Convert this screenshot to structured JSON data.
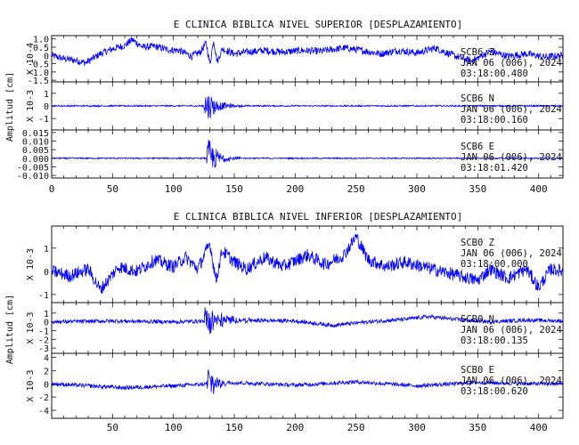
{
  "chart_data": [
    {
      "type": "line",
      "title": "E CLINICA BIBLICA NIVEL SUPERIOR [DESPLAZAMIENTO]",
      "ylabel": "Amplitud [cm]",
      "xlim": [
        0,
        420
      ],
      "x_ticks": [
        "0",
        "50",
        "100",
        "150",
        "200",
        "250",
        "300",
        "350",
        "400"
      ],
      "series_color": "#0000ff",
      "traces": [
        {
          "station": "SCB6",
          "component": "Z",
          "date": "JAN 06 (006), 2024",
          "time": "03:18:00.480",
          "scale_label": "X 10-4",
          "ylim": [
            -1.6,
            1.2
          ],
          "y_ticks": [
            "1.0",
            "0.5",
            "0",
            "-0.5",
            "-1.0",
            "-1.5"
          ],
          "y_tick_values": [
            1.0,
            0.5,
            0,
            -0.5,
            -1.0,
            -1.5
          ],
          "points": [
            [
              0,
              0
            ],
            [
              10,
              -0.2
            ],
            [
              20,
              -0.3
            ],
            [
              28,
              -0.45
            ],
            [
              40,
              0.1
            ],
            [
              50,
              0.4
            ],
            [
              60,
              0.6
            ],
            [
              66,
              0.95
            ],
            [
              75,
              0.5
            ],
            [
              85,
              0.55
            ],
            [
              95,
              0.35
            ],
            [
              105,
              0.3
            ],
            [
              115,
              -0.05
            ],
            [
              122,
              0.2
            ],
            [
              127,
              0.75
            ],
            [
              130,
              -0.55
            ],
            [
              133,
              0.95
            ],
            [
              136,
              -0.4
            ],
            [
              140,
              0.4
            ],
            [
              150,
              0.1
            ],
            [
              160,
              0.2
            ],
            [
              175,
              0.3
            ],
            [
              190,
              0.2
            ],
            [
              205,
              0.3
            ],
            [
              220,
              0.25
            ],
            [
              240,
              0.45
            ],
            [
              255,
              0.3
            ],
            [
              270,
              0.1
            ],
            [
              285,
              0.3
            ],
            [
              300,
              0.15
            ],
            [
              315,
              0.45
            ],
            [
              330,
              0.0
            ],
            [
              345,
              -0.35
            ],
            [
              360,
              0.25
            ],
            [
              375,
              -0.05
            ],
            [
              390,
              0.1
            ],
            [
              405,
              -0.1
            ],
            [
              420,
              0.0
            ]
          ],
          "noise": 0.22,
          "bursts": []
        },
        {
          "station": "SCB6",
          "component": "N",
          "date": "JAN 06 (006), 2024",
          "time": "03:18:00.160",
          "scale_label": "X 10-3",
          "ylim": [
            -1.9,
            1.9
          ],
          "y_ticks": [
            "1",
            "0",
            "-1"
          ],
          "y_tick_values": [
            1,
            0,
            -1
          ],
          "points": [
            [
              0,
              0
            ],
            [
              420,
              0
            ]
          ],
          "noise": 0.06,
          "bursts": [
            {
              "t0": 125,
              "t1": 160,
              "amp": 1.7,
              "decay": 9
            }
          ]
        },
        {
          "station": "SCB6",
          "component": "E",
          "date": "JAN 06 (006), 2024",
          "time": "03:18:01.420",
          "scale_label": "",
          "ylim": [
            -0.0115,
            0.0165
          ],
          "y_ticks": [
            "0.015",
            "0.010",
            "0.005",
            "0.000",
            "-0.005",
            "-0.010"
          ],
          "y_tick_values": [
            0.015,
            0.01,
            0.005,
            0.0,
            -0.005,
            -0.01
          ],
          "points": [
            [
              0,
              0
            ],
            [
              420,
              0
            ]
          ],
          "noise": 0.0004,
          "bursts": [
            {
              "t0": 127,
              "t1": 165,
              "amp": 0.015,
              "decay": 8
            }
          ]
        }
      ]
    },
    {
      "type": "line",
      "title": "E CLINICA BIBLICA NIVEL INFERIOR [DESPLAZAMIENTO]",
      "ylabel": "Amplitud [cm]",
      "xlim": [
        0,
        420
      ],
      "x_ticks": [
        "50",
        "100",
        "150",
        "200",
        "250",
        "300",
        "350",
        "400"
      ],
      "series_color": "#0000ff",
      "traces": [
        {
          "station": "SCB0",
          "component": "Z",
          "date": "JAN 06 (006), 2024",
          "time": "03:18:00.000",
          "scale_label": "X 10-3",
          "ylim": [
            -1.35,
            1.95
          ],
          "y_ticks": [
            "1",
            "0",
            "-1"
          ],
          "y_tick_values": [
            1,
            0,
            -1
          ],
          "points": [
            [
              0,
              0
            ],
            [
              15,
              -0.2
            ],
            [
              30,
              0.1
            ],
            [
              40,
              -0.8
            ],
            [
              55,
              0.2
            ],
            [
              70,
              0.0
            ],
            [
              85,
              0.5
            ],
            [
              100,
              0.2
            ],
            [
              110,
              0.6
            ],
            [
              120,
              0.1
            ],
            [
              130,
              1.2
            ],
            [
              135,
              -0.4
            ],
            [
              140,
              0.9
            ],
            [
              150,
              0.4
            ],
            [
              160,
              0.1
            ],
            [
              175,
              0.6
            ],
            [
              190,
              0.2
            ],
            [
              210,
              0.7
            ],
            [
              225,
              0.3
            ],
            [
              240,
              0.7
            ],
            [
              250,
              1.5
            ],
            [
              260,
              0.5
            ],
            [
              275,
              0.2
            ],
            [
              290,
              0.4
            ],
            [
              305,
              0.2
            ],
            [
              320,
              0.0
            ],
            [
              335,
              -0.2
            ],
            [
              350,
              -0.4
            ],
            [
              360,
              0.1
            ],
            [
              375,
              -0.3
            ],
            [
              390,
              0.1
            ],
            [
              400,
              -0.7
            ],
            [
              410,
              0.1
            ],
            [
              420,
              0.0
            ]
          ],
          "noise": 0.28,
          "bursts": []
        },
        {
          "station": "SCB0",
          "component": "N",
          "date": "JAN 06 (006), 2024",
          "time": "03:18:00.135",
          "scale_label": "X 10-3",
          "ylim": [
            -3.6,
            2.2
          ],
          "y_ticks": [
            "1",
            "0",
            "-1",
            "-2",
            "-3"
          ],
          "y_tick_values": [
            1,
            0,
            -1,
            -2,
            -3
          ],
          "points": [
            [
              0,
              0
            ],
            [
              50,
              0.1
            ],
            [
              100,
              0.0
            ],
            [
              150,
              0.2
            ],
            [
              200,
              0.1
            ],
            [
              230,
              -0.4
            ],
            [
              260,
              0.0
            ],
            [
              290,
              0.3
            ],
            [
              310,
              0.6
            ],
            [
              330,
              0.3
            ],
            [
              360,
              0.0
            ],
            [
              390,
              0.2
            ],
            [
              420,
              0.1
            ]
          ],
          "noise": 0.22,
          "bursts": [
            {
              "t0": 125,
              "t1": 170,
              "amp": 2.6,
              "decay": 12
            }
          ]
        },
        {
          "station": "SCB0",
          "component": "E",
          "date": "JAN 06 (006), 2024",
          "time": "03:18:00.620",
          "scale_label": "X 10-3",
          "ylim": [
            -5.2,
            4.6
          ],
          "y_ticks": [
            "4",
            "2",
            "0",
            "-2",
            "-4"
          ],
          "y_tick_values": [
            4,
            2,
            0,
            -2,
            -4
          ],
          "points": [
            [
              0,
              0
            ],
            [
              60,
              -0.6
            ],
            [
              100,
              -0.3
            ],
            [
              150,
              0.2
            ],
            [
              200,
              -0.2
            ],
            [
              250,
              0.3
            ],
            [
              300,
              -0.3
            ],
            [
              350,
              0.2
            ],
            [
              400,
              0.0
            ],
            [
              420,
              0.0
            ]
          ],
          "noise": 0.3,
          "bursts": [
            {
              "t0": 127,
              "t1": 160,
              "amp": 4.5,
              "decay": 6
            }
          ]
        }
      ]
    }
  ]
}
